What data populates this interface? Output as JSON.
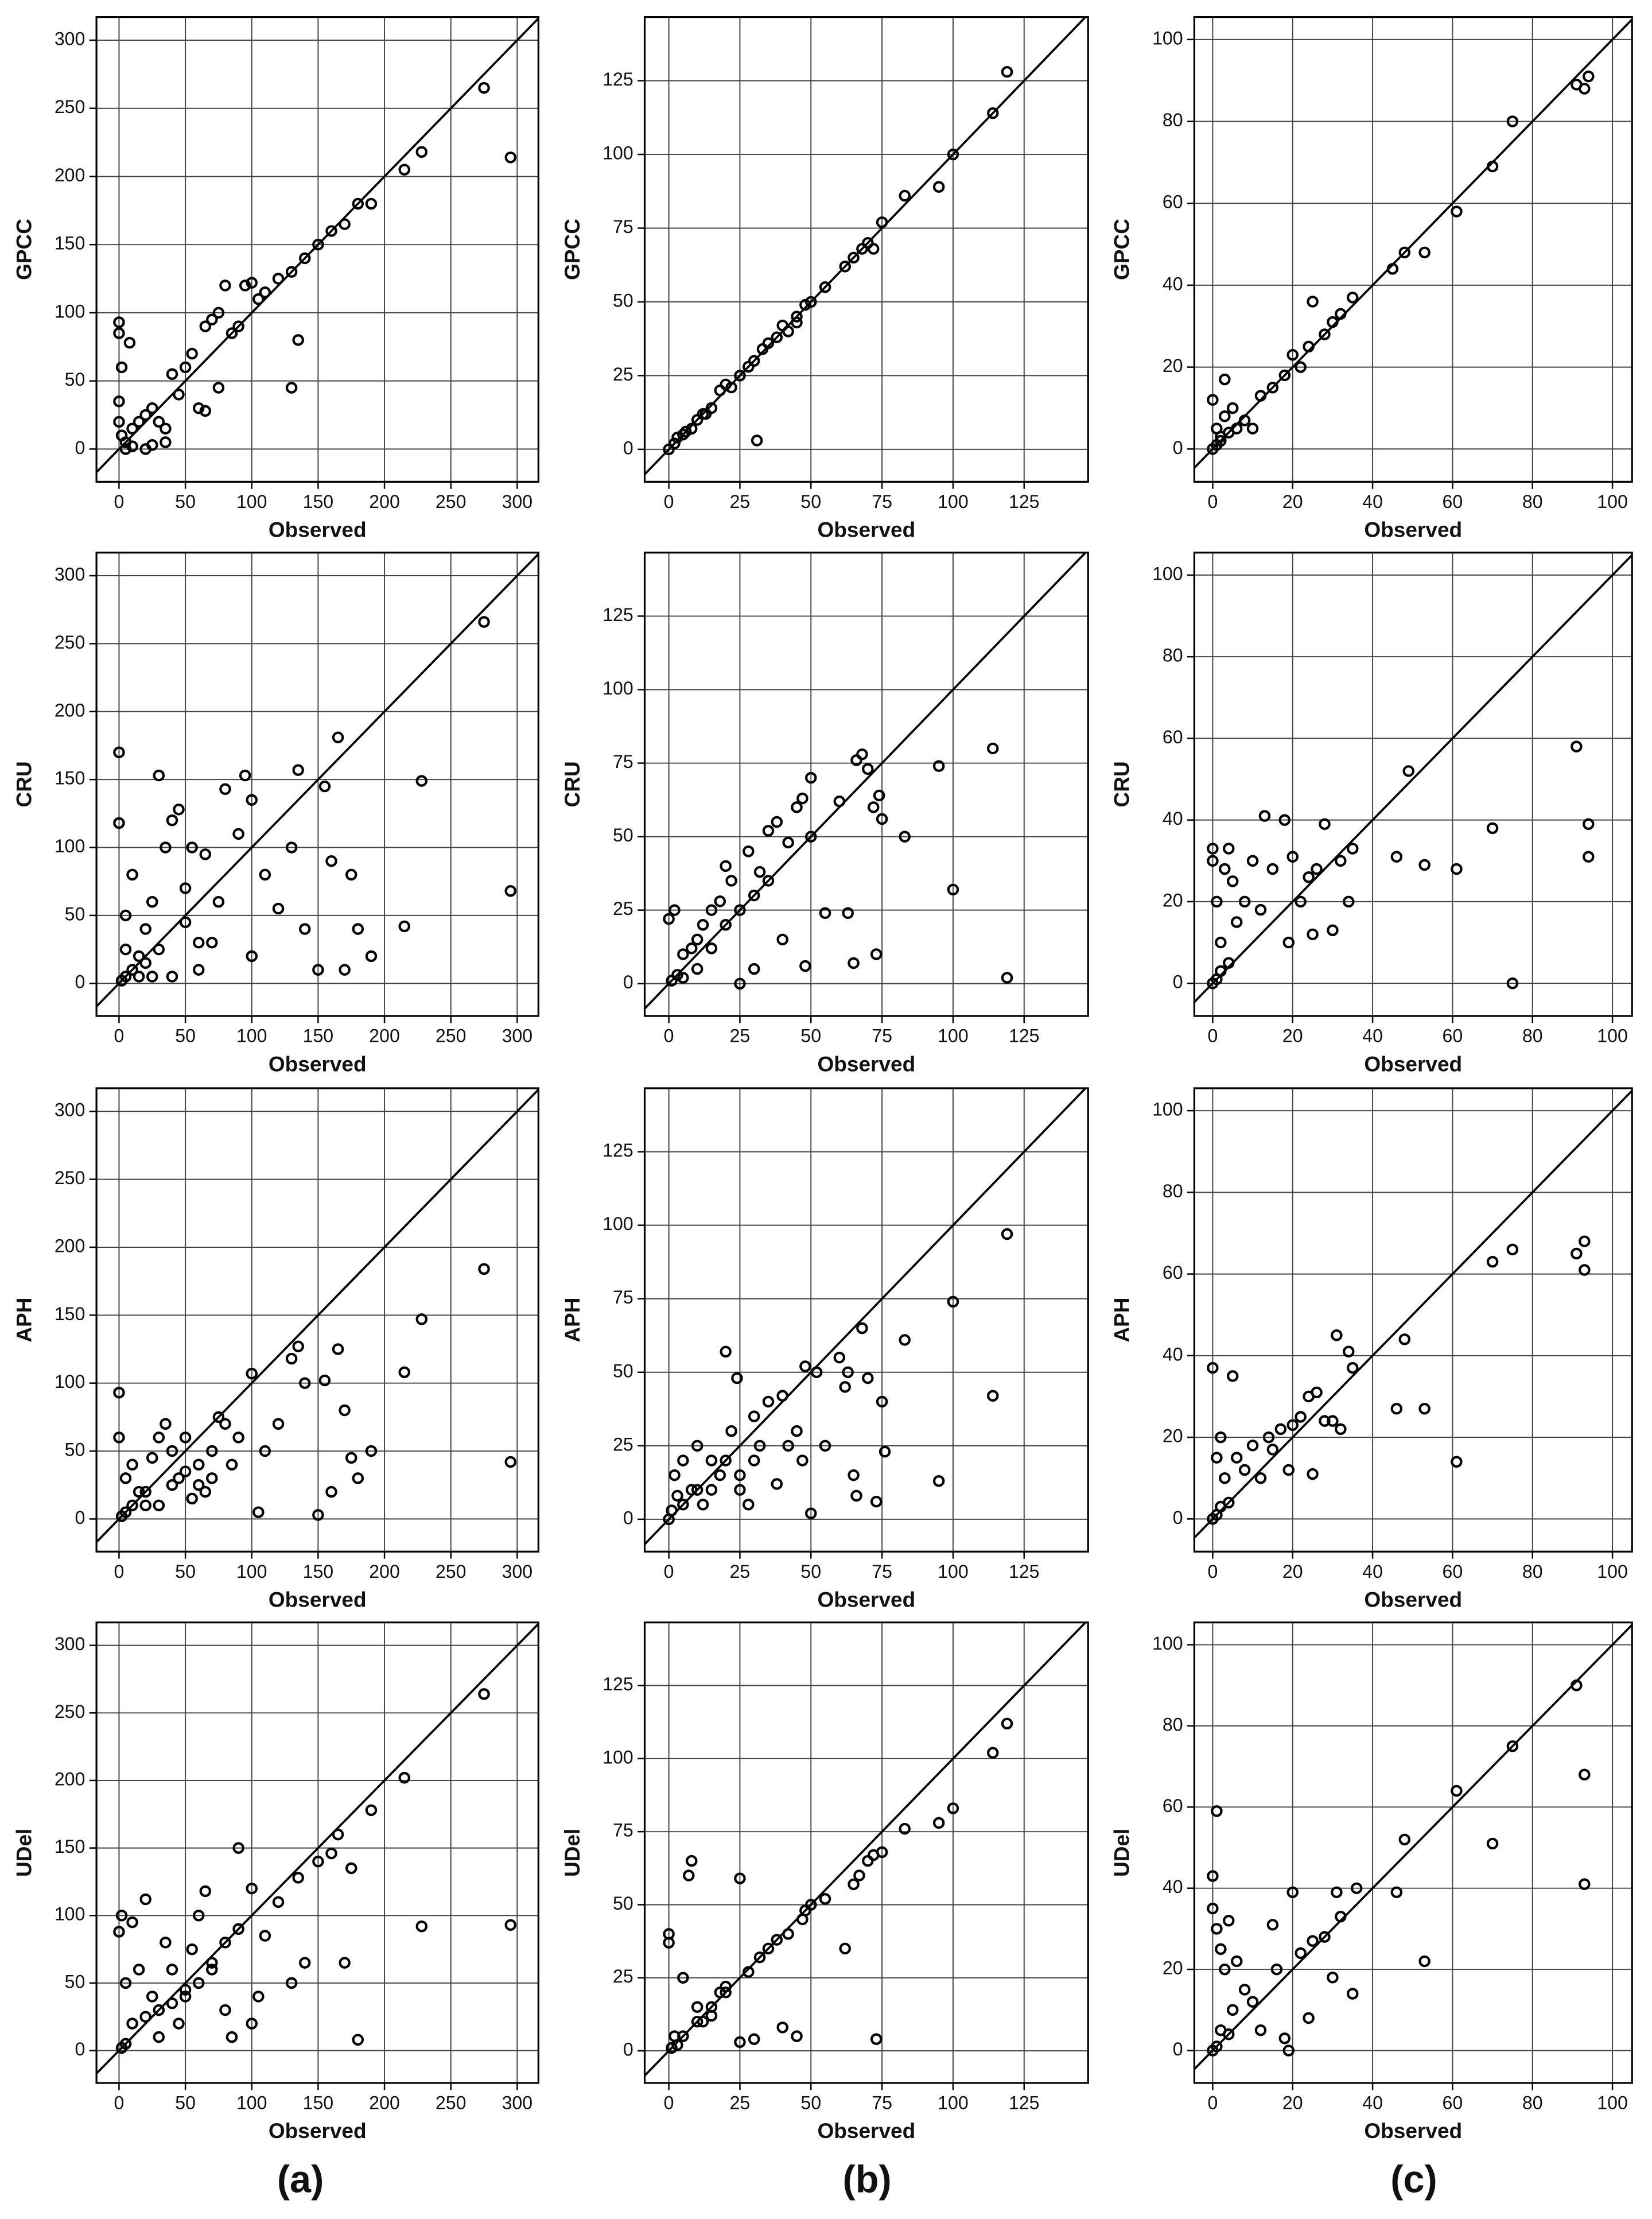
{
  "panel_labels": [
    "(a)",
    "(b)",
    "(c)"
  ],
  "chart_data": [
    {
      "type": "scatter",
      "x_label": "Observed",
      "y_label": "GPCC",
      "color": "#000000",
      "grid": true,
      "xlim": [
        -17,
        316
      ],
      "ylim": [
        -24,
        317
      ],
      "xticks": [
        0,
        50,
        100,
        150,
        200,
        250,
        300
      ],
      "yticks": [
        0,
        50,
        100,
        150,
        200,
        250,
        300
      ],
      "x": [
        0,
        0,
        2,
        8,
        0,
        0,
        2,
        5,
        10,
        15,
        20,
        25,
        30,
        35,
        40,
        45,
        50,
        55,
        60,
        65,
        70,
        75,
        80,
        85,
        90,
        95,
        100,
        105,
        110,
        120,
        130,
        135,
        130,
        140,
        150,
        160,
        170,
        180,
        190,
        215,
        228,
        275,
        295,
        75,
        65,
        35,
        25,
        20,
        5,
        10
      ],
      "values": [
        93,
        85,
        60,
        78,
        35,
        20,
        10,
        5,
        15,
        20,
        25,
        30,
        20,
        15,
        55,
        40,
        60,
        70,
        30,
        90,
        95,
        100,
        120,
        85,
        90,
        120,
        122,
        110,
        115,
        125,
        45,
        80,
        130,
        140,
        150,
        160,
        165,
        180,
        180,
        205,
        218,
        265,
        214,
        45,
        28,
        5,
        3,
        0,
        0,
        2
      ]
    },
    {
      "type": "scatter",
      "x_label": "Observed",
      "y_label": "GPCC",
      "color": "#000000",
      "grid": true,
      "xlim": [
        -8.5,
        147.5
      ],
      "ylim": [
        -11,
        146.6
      ],
      "xticks": [
        0,
        25,
        50,
        75,
        100,
        125
      ],
      "yticks": [
        0,
        25,
        50,
        75,
        100,
        125
      ],
      "x": [
        0,
        2,
        5,
        8,
        10,
        12,
        15,
        18,
        20,
        22,
        25,
        28,
        30,
        31,
        33,
        35,
        38,
        40,
        42,
        45,
        48,
        50,
        55,
        62,
        65,
        68,
        70,
        75,
        83,
        95,
        100,
        114,
        119,
        72,
        45,
        13,
        3,
        6
      ],
      "values": [
        0,
        2,
        5,
        7,
        10,
        12,
        14,
        20,
        22,
        21,
        25,
        28,
        30,
        3,
        34,
        36,
        38,
        42,
        40,
        45,
        49,
        50,
        55,
        62,
        65,
        68,
        70,
        77,
        86,
        89,
        100,
        114,
        128,
        68,
        43,
        12,
        4,
        6
      ]
    },
    {
      "type": "scatter",
      "x_label": "Observed",
      "y_label": "GPCC",
      "color": "#000000",
      "grid": true,
      "xlim": [
        -4.6,
        104.9
      ],
      "ylim": [
        -8,
        105.5
      ],
      "xticks": [
        0,
        20,
        40,
        60,
        80,
        100
      ],
      "yticks": [
        0,
        20,
        40,
        60,
        80,
        100
      ],
      "x": [
        0,
        1,
        2,
        3,
        3,
        5,
        6,
        8,
        10,
        12,
        15,
        18,
        20,
        22,
        24,
        25,
        28,
        30,
        32,
        35,
        45,
        48,
        53,
        61,
        70,
        75,
        91,
        93,
        94,
        2,
        4,
        0,
        1
      ],
      "values": [
        12,
        5,
        3,
        17,
        8,
        10,
        5,
        7,
        5,
        13,
        15,
        18,
        23,
        20,
        25,
        36,
        28,
        31,
        33,
        37,
        44,
        48,
        48,
        58,
        69,
        80,
        89,
        88,
        91,
        2,
        4,
        0,
        1
      ]
    },
    {
      "type": "scatter",
      "x_label": "Observed",
      "y_label": "CRU",
      "color": "#000000",
      "grid": true,
      "xlim": [
        -17,
        316
      ],
      "ylim": [
        -24,
        317
      ],
      "xticks": [
        0,
        50,
        100,
        150,
        200,
        250,
        300
      ],
      "yticks": [
        0,
        50,
        100,
        150,
        200,
        250,
        300
      ],
      "x": [
        0,
        0,
        5,
        10,
        15,
        20,
        25,
        30,
        35,
        40,
        45,
        50,
        55,
        60,
        65,
        70,
        75,
        80,
        90,
        95,
        100,
        100,
        110,
        120,
        130,
        135,
        140,
        150,
        155,
        160,
        165,
        170,
        175,
        180,
        190,
        215,
        228,
        275,
        295,
        5,
        10,
        20,
        30,
        40,
        50,
        60,
        5,
        15,
        25,
        2
      ],
      "values": [
        170,
        118,
        50,
        80,
        20,
        40,
        60,
        153,
        100,
        120,
        128,
        45,
        100,
        10,
        95,
        30,
        60,
        143,
        110,
        153,
        135,
        20,
        80,
        55,
        100,
        157,
        40,
        10,
        145,
        90,
        181,
        10,
        80,
        40,
        20,
        42,
        149,
        266,
        68,
        5,
        10,
        15,
        25,
        5,
        70,
        30,
        25,
        5,
        5,
        2
      ]
    },
    {
      "type": "scatter",
      "x_label": "Observed",
      "y_label": "CRU",
      "color": "#000000",
      "grid": true,
      "xlim": [
        -8.5,
        147.5
      ],
      "ylim": [
        -11,
        146.6
      ],
      "xticks": [
        0,
        25,
        50,
        75,
        100,
        125
      ],
      "yticks": [
        0,
        25,
        50,
        75,
        100,
        125
      ],
      "x": [
        0,
        2,
        5,
        8,
        10,
        12,
        15,
        18,
        20,
        22,
        25,
        28,
        30,
        32,
        35,
        38,
        40,
        42,
        45,
        47,
        50,
        48,
        50,
        55,
        60,
        63,
        65,
        66,
        68,
        70,
        72,
        73,
        75,
        74,
        83,
        95,
        100,
        114,
        119,
        5,
        10,
        15,
        20,
        25,
        30,
        35,
        3,
        1
      ],
      "values": [
        22,
        25,
        10,
        12,
        15,
        20,
        25,
        28,
        40,
        35,
        0,
        45,
        5,
        38,
        52,
        55,
        15,
        48,
        60,
        63,
        70,
        6,
        50,
        24,
        62,
        24,
        7,
        76,
        78,
        73,
        60,
        10,
        56,
        64,
        50,
        74,
        32,
        80,
        2,
        2,
        5,
        12,
        20,
        25,
        30,
        35,
        3,
        1
      ]
    },
    {
      "type": "scatter",
      "x_label": "Observed",
      "y_label": "CRU",
      "color": "#000000",
      "grid": true,
      "xlim": [
        -4.6,
        104.9
      ],
      "ylim": [
        -8,
        105.5
      ],
      "xticks": [
        0,
        20,
        40,
        60,
        80,
        100
      ],
      "yticks": [
        0,
        20,
        40,
        60,
        80,
        100
      ],
      "x": [
        0,
        0,
        1,
        2,
        3,
        4,
        5,
        6,
        8,
        10,
        12,
        13,
        15,
        18,
        19,
        20,
        22,
        24,
        25,
        26,
        28,
        30,
        32,
        34,
        35,
        46,
        49,
        53,
        61,
        70,
        75,
        91,
        94,
        94,
        0,
        2,
        4,
        1
      ],
      "values": [
        33,
        30,
        20,
        10,
        28,
        33,
        25,
        15,
        20,
        30,
        18,
        41,
        28,
        40,
        10,
        31,
        20,
        26,
        12,
        28,
        39,
        13,
        30,
        20,
        33,
        31,
        52,
        29,
        28,
        38,
        0,
        58,
        39,
        31,
        0,
        3,
        5,
        1
      ]
    },
    {
      "type": "scatter",
      "x_label": "Observed",
      "y_label": "APH",
      "color": "#000000",
      "grid": true,
      "xlim": [
        -17,
        316
      ],
      "ylim": [
        -24,
        317
      ],
      "xticks": [
        0,
        50,
        100,
        150,
        200,
        250,
        300
      ],
      "yticks": [
        0,
        50,
        100,
        150,
        200,
        250,
        300
      ],
      "x": [
        0,
        0,
        5,
        10,
        15,
        20,
        25,
        30,
        35,
        40,
        45,
        50,
        55,
        60,
        65,
        70,
        75,
        80,
        90,
        100,
        105,
        110,
        120,
        130,
        135,
        140,
        150,
        155,
        160,
        165,
        170,
        175,
        180,
        190,
        215,
        228,
        275,
        295,
        5,
        10,
        20,
        30,
        40,
        50,
        60,
        70,
        85,
        2
      ],
      "values": [
        93,
        60,
        30,
        40,
        20,
        10,
        45,
        60,
        70,
        50,
        30,
        60,
        15,
        40,
        20,
        50,
        75,
        70,
        60,
        107,
        5,
        50,
        70,
        118,
        127,
        100,
        3,
        102,
        20,
        125,
        80,
        45,
        30,
        50,
        108,
        147,
        184,
        42,
        5,
        10,
        20,
        10,
        25,
        35,
        25,
        30,
        40,
        2
      ]
    },
    {
      "type": "scatter",
      "x_label": "Observed",
      "y_label": "APH",
      "color": "#000000",
      "grid": true,
      "xlim": [
        -8.5,
        147.5
      ],
      "ylim": [
        -11,
        146.6
      ],
      "xticks": [
        0,
        25,
        50,
        75,
        100,
        125
      ],
      "yticks": [
        0,
        25,
        50,
        75,
        100,
        125
      ],
      "x": [
        0,
        2,
        5,
        8,
        10,
        12,
        15,
        18,
        20,
        22,
        24,
        25,
        28,
        30,
        32,
        35,
        38,
        40,
        42,
        45,
        47,
        48,
        50,
        52,
        55,
        60,
        62,
        63,
        65,
        66,
        68,
        70,
        73,
        75,
        76,
        83,
        95,
        100,
        114,
        119,
        5,
        10,
        15,
        20,
        25,
        30,
        3,
        1
      ],
      "values": [
        0,
        15,
        20,
        10,
        25,
        5,
        20,
        15,
        57,
        30,
        48,
        10,
        5,
        35,
        25,
        40,
        12,
        42,
        25,
        30,
        20,
        52,
        2,
        50,
        25,
        55,
        45,
        50,
        15,
        8,
        65,
        48,
        6,
        40,
        23,
        61,
        13,
        74,
        42,
        97,
        5,
        10,
        10,
        20,
        15,
        20,
        8,
        3
      ]
    },
    {
      "type": "scatter",
      "x_label": "Observed",
      "y_label": "APH",
      "color": "#000000",
      "grid": true,
      "xlim": [
        -4.6,
        104.9
      ],
      "ylim": [
        -8,
        105.5
      ],
      "xticks": [
        0,
        20,
        40,
        60,
        80,
        100
      ],
      "yticks": [
        0,
        20,
        40,
        60,
        80,
        100
      ],
      "x": [
        0,
        1,
        2,
        3,
        5,
        6,
        8,
        10,
        12,
        14,
        15,
        17,
        19,
        20,
        22,
        24,
        25,
        26,
        28,
        30,
        31,
        32,
        34,
        35,
        46,
        48,
        53,
        61,
        70,
        75,
        91,
        93,
        93,
        0,
        2,
        4,
        1
      ],
      "values": [
        37,
        15,
        20,
        10,
        35,
        15,
        12,
        18,
        10,
        20,
        17,
        22,
        12,
        23,
        25,
        30,
        11,
        31,
        24,
        24,
        45,
        22,
        41,
        37,
        27,
        44,
        27,
        14,
        63,
        66,
        65,
        68,
        61,
        0,
        3,
        4,
        1
      ]
    },
    {
      "type": "scatter",
      "x_label": "Observed",
      "y_label": "UDel",
      "color": "#000000",
      "grid": true,
      "xlim": [
        -17,
        316
      ],
      "ylim": [
        -24,
        317
      ],
      "xticks": [
        0,
        50,
        100,
        150,
        200,
        250,
        300
      ],
      "yticks": [
        0,
        50,
        100,
        150,
        200,
        250,
        300
      ],
      "x": [
        0,
        2,
        5,
        10,
        15,
        20,
        25,
        30,
        35,
        40,
        45,
        50,
        55,
        60,
        65,
        70,
        80,
        85,
        90,
        100,
        100,
        105,
        110,
        120,
        130,
        135,
        140,
        150,
        160,
        165,
        170,
        175,
        180,
        190,
        215,
        228,
        275,
        295,
        5,
        10,
        20,
        30,
        40,
        50,
        60,
        70,
        80,
        90,
        2
      ],
      "values": [
        88,
        100,
        50,
        95,
        60,
        112,
        40,
        30,
        80,
        60,
        20,
        40,
        75,
        100,
        118,
        60,
        30,
        10,
        150,
        120,
        20,
        40,
        85,
        110,
        50,
        128,
        65,
        140,
        146,
        160,
        65,
        135,
        8,
        178,
        202,
        92,
        264,
        93,
        5,
        20,
        25,
        10,
        35,
        45,
        50,
        65,
        80,
        90,
        2
      ]
    },
    {
      "type": "scatter",
      "x_label": "Observed",
      "y_label": "UDel",
      "color": "#000000",
      "grid": true,
      "xlim": [
        -8.5,
        147.5
      ],
      "ylim": [
        -11,
        146.6
      ],
      "xticks": [
        0,
        25,
        50,
        75,
        100,
        125
      ],
      "yticks": [
        0,
        25,
        50,
        75,
        100,
        125
      ],
      "x": [
        0,
        0,
        2,
        5,
        7,
        8,
        10,
        12,
        15,
        18,
        20,
        25,
        25,
        28,
        30,
        32,
        35,
        38,
        40,
        42,
        45,
        47,
        48,
        50,
        55,
        62,
        65,
        67,
        70,
        72,
        73,
        75,
        83,
        95,
        100,
        114,
        119,
        5,
        10,
        15,
        20,
        3,
        1
      ],
      "values": [
        40,
        37,
        5,
        25,
        60,
        65,
        15,
        10,
        15,
        20,
        22,
        59,
        3,
        27,
        4,
        32,
        35,
        38,
        8,
        40,
        5,
        45,
        48,
        50,
        52,
        35,
        57,
        60,
        65,
        67,
        4,
        68,
        76,
        78,
        83,
        102,
        112,
        5,
        10,
        12,
        20,
        2,
        1
      ]
    },
    {
      "type": "scatter",
      "x_label": "Observed",
      "y_label": "UDel",
      "color": "#000000",
      "grid": true,
      "xlim": [
        -4.6,
        104.9
      ],
      "ylim": [
        -8,
        105.5
      ],
      "xticks": [
        0,
        20,
        40,
        60,
        80,
        100
      ],
      "yticks": [
        0,
        20,
        40,
        60,
        80,
        100
      ],
      "x": [
        0,
        0,
        1,
        1,
        2,
        3,
        4,
        5,
        6,
        8,
        10,
        12,
        15,
        16,
        18,
        19,
        20,
        22,
        24,
        25,
        28,
        30,
        31,
        32,
        35,
        36,
        46,
        48,
        53,
        61,
        70,
        75,
        91,
        93,
        93,
        0,
        2,
        4,
        1
      ],
      "values": [
        43,
        35,
        59,
        30,
        25,
        20,
        32,
        10,
        22,
        15,
        12,
        5,
        31,
        20,
        3,
        0,
        39,
        24,
        8,
        27,
        28,
        18,
        39,
        33,
        14,
        40,
        39,
        52,
        22,
        64,
        51,
        75,
        90,
        68,
        41,
        0,
        5,
        4,
        1
      ]
    }
  ]
}
